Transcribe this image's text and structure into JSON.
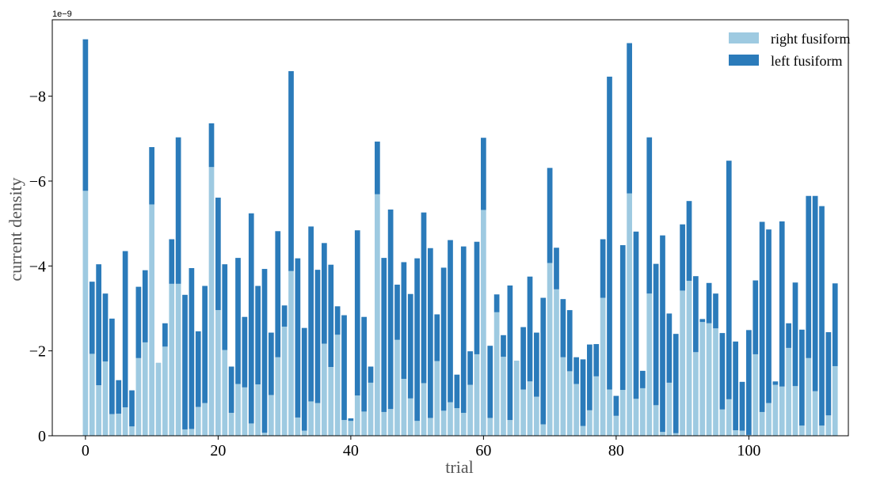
{
  "chart_data": {
    "type": "bar",
    "stacked": true,
    "xlabel": "trial",
    "ylabel": "current density",
    "y_offset_label": "1e−9",
    "y_axis_inverted": true,
    "xlim": [
      -5,
      115
    ],
    "ylim_display": [
      0,
      -9.8
    ],
    "x_ticks": [
      0,
      20,
      40,
      60,
      80,
      100
    ],
    "x_tick_labels": [
      "0",
      "20",
      "40",
      "60",
      "80",
      "100"
    ],
    "y_ticks": [
      0,
      -2,
      -4,
      -6,
      -8
    ],
    "y_tick_labels": [
      "0",
      "−2",
      "−4",
      "−6",
      "−8"
    ],
    "legend_position": "top-right",
    "colors": {
      "right fusiform": "#9ecae1",
      "left fusiform": "#2b7bba"
    },
    "x": [
      0,
      1,
      2,
      3,
      4,
      5,
      6,
      7,
      8,
      9,
      10,
      11,
      12,
      13,
      14,
      15,
      16,
      17,
      18,
      19,
      20,
      21,
      22,
      23,
      24,
      25,
      26,
      27,
      28,
      29,
      30,
      31,
      32,
      33,
      34,
      35,
      36,
      37,
      38,
      39,
      40,
      41,
      42,
      43,
      44,
      45,
      46,
      47,
      48,
      49,
      50,
      51,
      52,
      53,
      54,
      55,
      56,
      57,
      58,
      59,
      60,
      61,
      62,
      63,
      64,
      65,
      66,
      67,
      68,
      69,
      70,
      71,
      72,
      73,
      74,
      75,
      76,
      77,
      78,
      79,
      80,
      81,
      82,
      83,
      84,
      85,
      86,
      87,
      88,
      89,
      90,
      91,
      92,
      93,
      94,
      95,
      96,
      97,
      98,
      99,
      100,
      101,
      102,
      103,
      104,
      105,
      106,
      107,
      108,
      109,
      110,
      111,
      112,
      113
    ],
    "series": [
      {
        "name": "right fusiform",
        "values": [
          -5.77,
          -1.93,
          -1.19,
          -1.75,
          -0.51,
          -0.52,
          -0.67,
          -0.22,
          -1.83,
          -2.2,
          -5.45,
          -1.72,
          -2.1,
          -3.58,
          -3.58,
          -0.15,
          -0.16,
          -0.68,
          -0.77,
          -6.33,
          -2.96,
          -2.02,
          -0.54,
          -1.22,
          -1.14,
          -0.29,
          -1.21,
          -0.07,
          -0.96,
          -1.85,
          -2.57,
          -3.88,
          -0.43,
          -0.12,
          -0.81,
          -0.77,
          -2.17,
          -1.62,
          -2.38,
          -0.37,
          -0.35,
          -0.95,
          -0.57,
          -1.25,
          -5.69,
          -0.56,
          -0.63,
          -2.26,
          -1.34,
          -0.88,
          -0.35,
          -1.24,
          -0.42,
          -1.76,
          -0.59,
          -0.79,
          -0.65,
          -0.54,
          -1.2,
          -1.92,
          -5.32,
          -0.42,
          -2.91,
          -1.86,
          -0.37,
          -1.77,
          -1.09,
          -1.28,
          -0.92,
          -0.27,
          -4.07,
          -3.45,
          -1.85,
          -1.52,
          -1.22,
          -0.23,
          -0.6,
          -1.4,
          -3.25,
          -1.09,
          -0.47,
          -1.08,
          -5.71,
          -0.87,
          -1.12,
          -3.35,
          -0.72,
          -0.09,
          -1.25,
          -0.06,
          -3.42,
          -3.65,
          -1.97,
          -2.68,
          -2.65,
          -2.53,
          -0.62,
          -0.86,
          -0.13,
          -0.12,
          -0.02,
          -1.92,
          -0.56,
          -0.77,
          -1.2,
          -1.16,
          -2.07,
          -1.17,
          -0.24,
          -1.83,
          -1.05,
          -0.24,
          -0.48,
          -1.64
        ]
      },
      {
        "name": "left fusiform",
        "values": [
          -3.57,
          -1.7,
          -2.85,
          -1.6,
          -2.25,
          -0.79,
          -3.68,
          -0.85,
          -1.68,
          -1.7,
          -1.35,
          0,
          -0.55,
          -1.05,
          -3.45,
          -3.17,
          -3.79,
          -1.78,
          -2.76,
          -1.03,
          -2.65,
          -2.02,
          -1.09,
          -2.97,
          -1.66,
          -4.95,
          -2.32,
          -3.86,
          -1.47,
          -2.97,
          -0.5,
          -4.71,
          -3.75,
          -2.42,
          -4.12,
          -3.14,
          -2.37,
          -2.41,
          -0.67,
          -2.47,
          -0.06,
          -3.89,
          -2.23,
          -0.38,
          -1.24,
          -3.63,
          -4.7,
          -1.3,
          -2.75,
          -2.46,
          -3.83,
          -4.02,
          -4.0,
          -1.1,
          -3.37,
          -3.82,
          -0.79,
          -3.92,
          -0.79,
          -2.65,
          -1.7,
          -1.7,
          -0.42,
          -0.51,
          -3.17,
          0,
          -1.47,
          -2.47,
          -1.51,
          -2.98,
          -2.24,
          -0.98,
          -1.37,
          -1.44,
          -0.63,
          -1.57,
          -1.55,
          -0.76,
          -1.38,
          -7.37,
          -0.47,
          -3.41,
          -3.54,
          -3.94,
          -0.41,
          -3.68,
          -3.33,
          -4.63,
          -1.63,
          -2.34,
          -1.56,
          -1.88,
          -1.79,
          -0.07,
          -0.95,
          -0.82,
          -1.8,
          -5.62,
          -2.09,
          -1.15,
          -2.47,
          -1.74,
          -4.48,
          -4.09,
          -0.08,
          -3.89,
          -0.58,
          -2.44,
          -2.26,
          -3.82,
          -4.6,
          -5.17,
          -1.96,
          -1.95
        ]
      }
    ]
  }
}
